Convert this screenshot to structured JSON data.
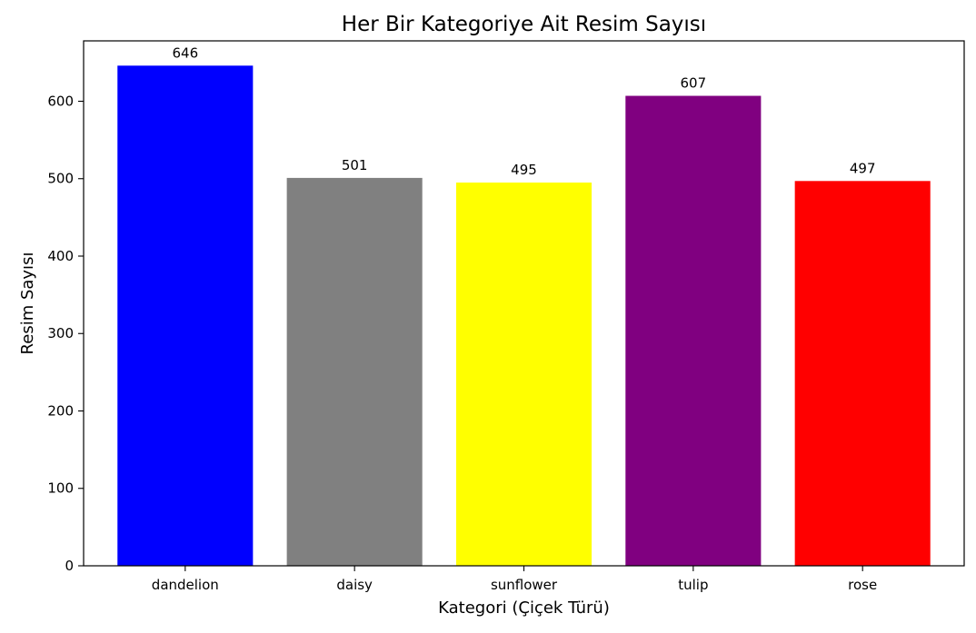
{
  "chart_data": {
    "type": "bar",
    "title": "Her Bir Kategoriye Ait Resim Sayısı",
    "xlabel": "Kategori (Çiçek Türü)",
    "ylabel": "Resim Sayısı",
    "categories": [
      "dandelion",
      "daisy",
      "sunflower",
      "tulip",
      "rose"
    ],
    "values": [
      646,
      501,
      495,
      607,
      497
    ],
    "colors": [
      "#0000ff",
      "#808080",
      "#ffff00",
      "#800080",
      "#ff0000"
    ],
    "ylim": [
      0,
      678
    ],
    "yticks": [
      0,
      100,
      200,
      300,
      400,
      500,
      600
    ],
    "grid": false,
    "legend": "none",
    "data_labels": true
  }
}
